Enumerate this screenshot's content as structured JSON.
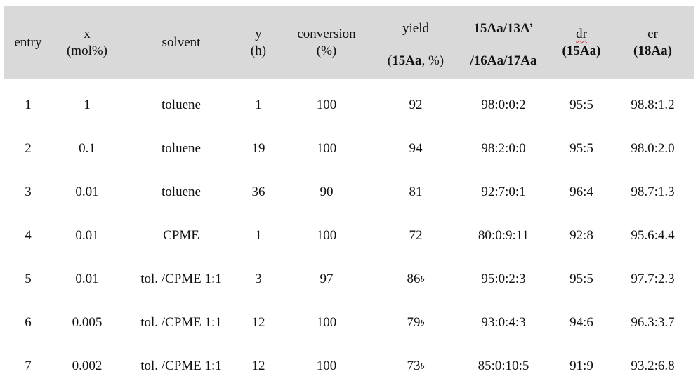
{
  "header": {
    "entry": "entry",
    "x_line1": "x",
    "x_line2": "(mol%)",
    "solvent": "solvent",
    "y_line1": "y",
    "y_line2": "(h)",
    "conversion_line1": "conversion",
    "conversion_line2": "(%)",
    "yield_line1": "yield",
    "yield_open": "(",
    "yield_compound": "15Aa",
    "yield_rest": ", %)",
    "ratio_line1": "15Aa/13A’",
    "ratio_line2": "/16Aa/17Aa",
    "dr_line1": "dr",
    "dr_line2": "(15Aa)",
    "er_line1": "er",
    "er_line2": "(18Aa)"
  },
  "rows": [
    {
      "entry": "1",
      "x": "1",
      "solvent": "toluene",
      "y": "1",
      "conversion": "100",
      "yield": "92",
      "note": "",
      "ratio": "98:0:0:2",
      "dr": "95:5",
      "er": "98.8:1.2"
    },
    {
      "entry": "2",
      "x": "0.1",
      "solvent": "toluene",
      "y": "19",
      "conversion": "100",
      "yield": "94",
      "note": "",
      "ratio": "98:2:0:0",
      "dr": "95:5",
      "er": "98.0:2.0"
    },
    {
      "entry": "3",
      "x": "0.01",
      "solvent": "toluene",
      "y": "36",
      "conversion": "90",
      "yield": "81",
      "note": "",
      "ratio": "92:7:0:1",
      "dr": "96:4",
      "er": "98.7:1.3"
    },
    {
      "entry": "4",
      "x": "0.01",
      "solvent": "CPME",
      "y": "1",
      "conversion": "100",
      "yield": "72",
      "note": "",
      "ratio": "80:0:9:11",
      "dr": "92:8",
      "er": "95.6:4.4"
    },
    {
      "entry": "5",
      "x": "0.01",
      "solvent": "tol. /CPME 1:1",
      "y": "3",
      "conversion": "97",
      "yield": "86",
      "note": "b",
      "ratio": "95:0:2:3",
      "dr": "95:5",
      "er": "97.7:2.3"
    },
    {
      "entry": "6",
      "x": "0.005",
      "solvent": "tol. /CPME 1:1",
      "y": "12",
      "conversion": "100",
      "yield": "79",
      "note": "b",
      "ratio": "93:0:4:3",
      "dr": "94:6",
      "er": "96.3:3.7"
    },
    {
      "entry": "7",
      "x": "0.002",
      "solvent": "tol. /CPME 1:1",
      "y": "12",
      "conversion": "100",
      "yield": "73",
      "note": "b",
      "ratio": "85:0:10:5",
      "dr": "91:9",
      "er": "93.2:6.8"
    }
  ]
}
